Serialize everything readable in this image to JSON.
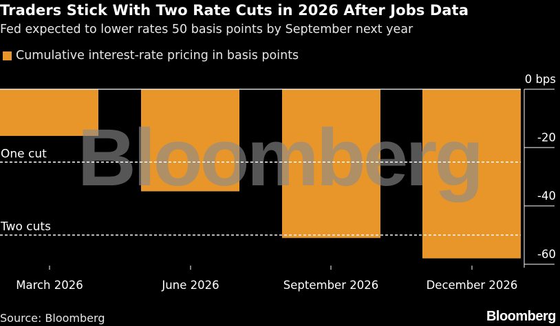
{
  "title": "Traders Stick With Two Rate Cuts in 2026 After Jobs Data",
  "subtitle": "Fed expected to lower rates 50 basis points by September next year",
  "source": "Source: Bloomberg",
  "brand": "Bloomberg",
  "watermark": "Bloomberg",
  "colors": {
    "background": "#000000",
    "bar": "#e8962a",
    "text": "#ffffff",
    "reference_line": "#ffffff",
    "watermark": "#8a8a8a"
  },
  "chart_data": {
    "type": "bar",
    "categories": [
      "March 2026",
      "June 2026",
      "September 2026",
      "December 2026"
    ],
    "series": [
      {
        "name": "Cumulative interest-rate pricing in basis points",
        "values": [
          -16,
          -35,
          -51,
          -58
        ]
      }
    ],
    "yaxis": {
      "position": "right",
      "ylim": [
        -60,
        0
      ],
      "ticks": [
        0,
        -20,
        -40,
        -60
      ],
      "tick_labels": [
        "0 bps",
        "-20",
        "-40",
        "-60"
      ]
    },
    "reference_lines": [
      {
        "value": -25,
        "label": "One cut",
        "style": "dashed"
      },
      {
        "value": -50,
        "label": "Two cuts",
        "style": "dashed"
      }
    ],
    "legend_position": "top-left",
    "grid": false
  }
}
